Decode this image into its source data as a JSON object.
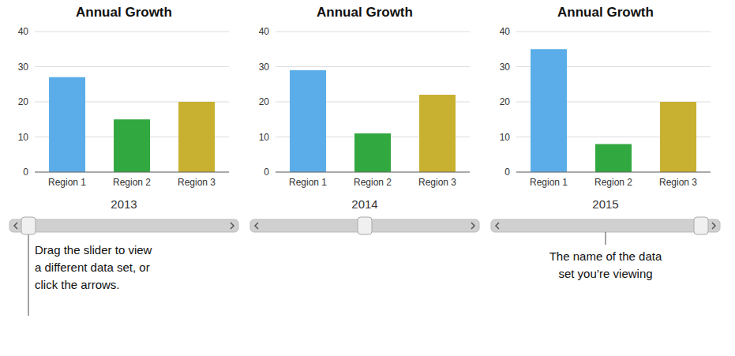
{
  "chart_data": [
    {
      "type": "bar",
      "title": "Annual Growth",
      "xlabel": "2013",
      "categories": [
        "Region 1",
        "Region 2",
        "Region 3"
      ],
      "values": [
        27,
        15,
        20
      ],
      "colors": [
        "#5AADE8",
        "#32A840",
        "#C8B030"
      ],
      "ylim": [
        0,
        40
      ],
      "yticks": [
        0,
        10,
        20,
        30,
        40
      ],
      "grid": true,
      "annotations": [
        "Drag the slider to view\na different data set, or\nclick the arrows."
      ]
    },
    {
      "type": "bar",
      "title": "Annual Growth",
      "xlabel": "2014",
      "categories": [
        "Region 1",
        "Region 2",
        "Region 3"
      ],
      "values": [
        29,
        11,
        22
      ],
      "colors": [
        "#5AADE8",
        "#32A840",
        "#C8B030"
      ],
      "ylim": [
        0,
        40
      ],
      "yticks": [
        0,
        10,
        20,
        30,
        40
      ],
      "grid": true
    },
    {
      "type": "bar",
      "title": "Annual Growth",
      "xlabel": "2015",
      "categories": [
        "Region 1",
        "Region 2",
        "Region 3"
      ],
      "values": [
        35,
        8,
        20
      ],
      "colors": [
        "#5AADE8",
        "#32A840",
        "#C8B030"
      ],
      "ylim": [
        0,
        40
      ],
      "yticks": [
        0,
        10,
        20,
        30,
        40
      ],
      "grid": true,
      "annotations": [
        "The name of the data\nset you’re viewing"
      ]
    }
  ]
}
